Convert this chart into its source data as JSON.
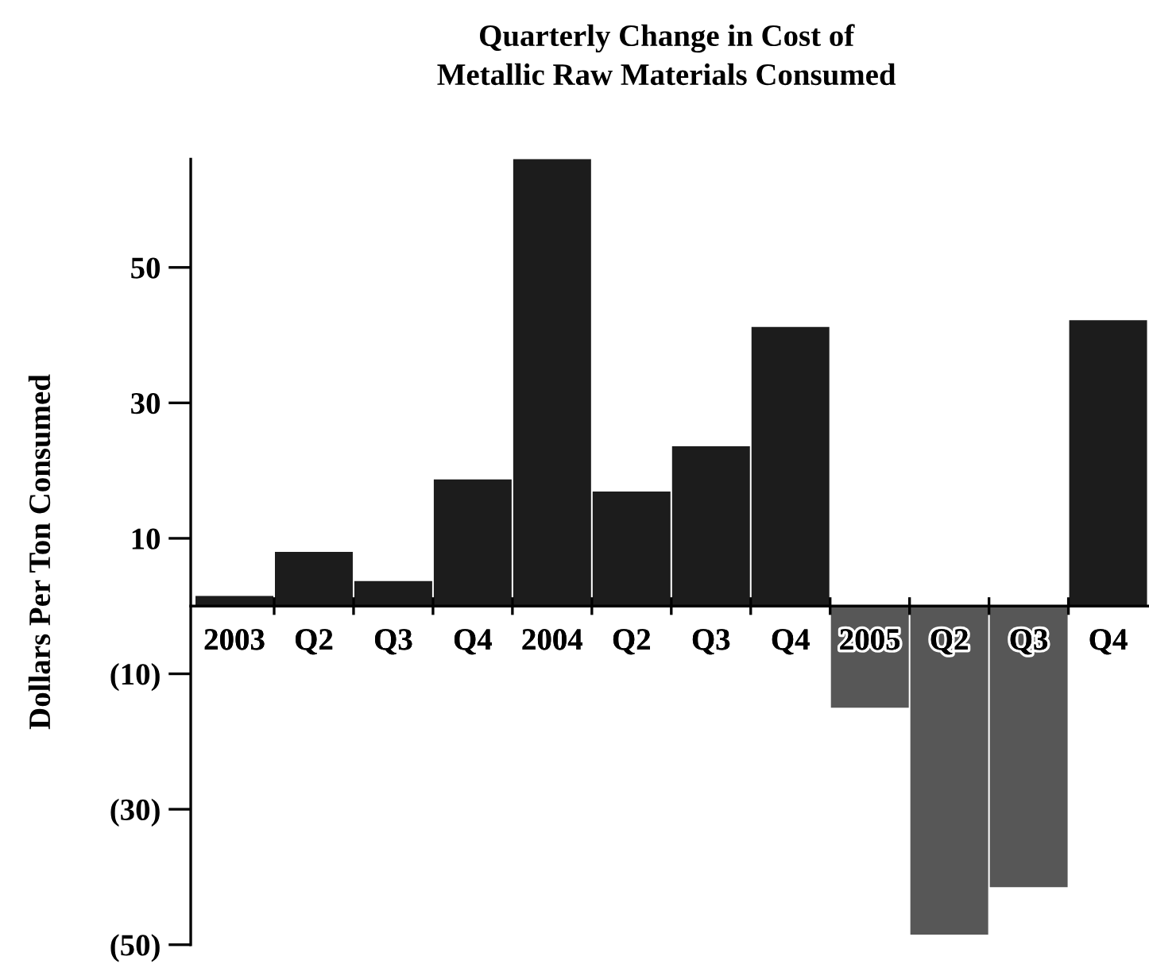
{
  "chart_data": {
    "type": "bar",
    "title": "Quarterly Change in Cost of\nMetallic Raw Materials Consumed",
    "ylabel": "Dollars Per Ton Consumed",
    "categories": [
      "2003",
      "Q2",
      "Q3",
      "Q4",
      "2004",
      "Q2",
      "Q3",
      "Q4",
      "2005",
      "Q2",
      "Q3",
      "Q4"
    ],
    "values": [
      1.5,
      8,
      3.7,
      18.7,
      66,
      16.9,
      23.6,
      41.2,
      -15,
      -48.5,
      -41.5,
      42.2
    ],
    "colors": [
      "#1c1c1c",
      "#1c1c1c",
      "#1c1c1c",
      "#1c1c1c",
      "#1c1c1c",
      "#1c1c1c",
      "#1c1c1c",
      "#1c1c1c",
      "#575757",
      "#575757",
      "#575757",
      "#1c1c1c"
    ],
    "ylim": [
      -50,
      66
    ],
    "yticks": [
      {
        "value": 50,
        "label": "50"
      },
      {
        "value": 30,
        "label": "30"
      },
      {
        "value": 10,
        "label": "10"
      },
      {
        "value": -10,
        "label": "(10)"
      },
      {
        "value": -30,
        "label": "(30)"
      },
      {
        "value": -50,
        "label": "(50)"
      }
    ],
    "grid": false,
    "legend": false
  }
}
